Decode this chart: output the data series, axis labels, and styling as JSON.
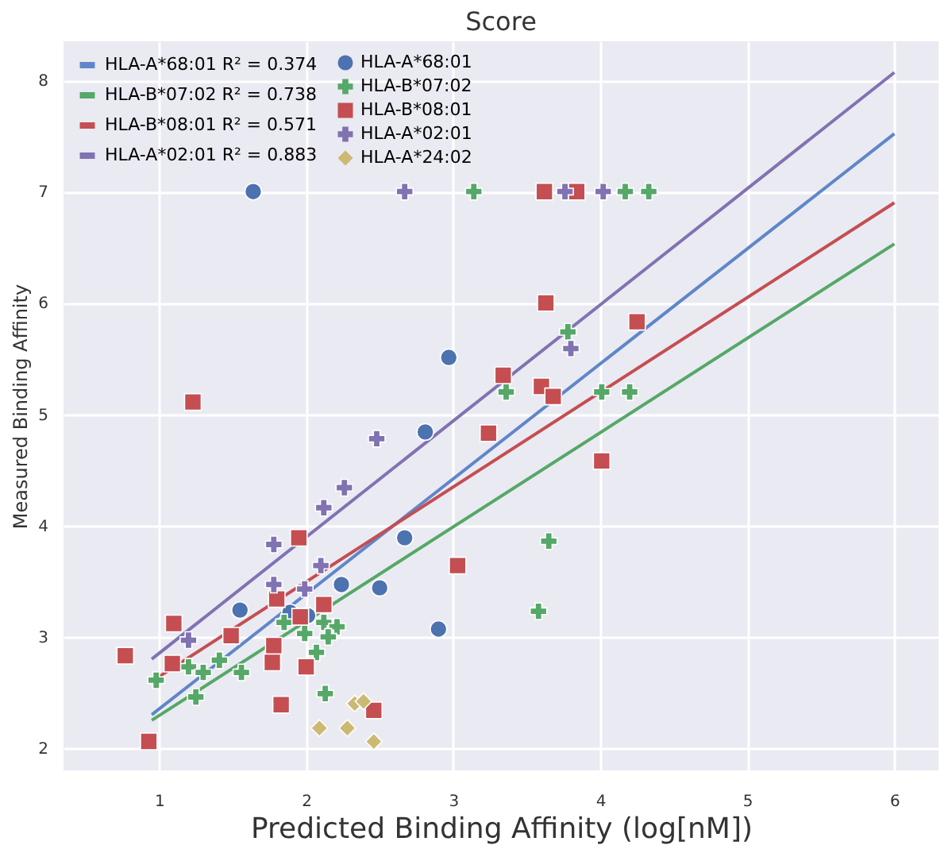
{
  "chart_data": {
    "type": "scatter",
    "title": "Score",
    "xlabel": "Predicted Binding Affinity (log[nM])",
    "ylabel": "Measured Binding Affinity",
    "xlim": [
      0.35,
      6.3
    ],
    "ylim": [
      1.8,
      8.35
    ],
    "xticks": [
      1,
      2,
      3,
      4,
      5,
      6
    ],
    "yticks": [
      2,
      3,
      4,
      5,
      6,
      7,
      8
    ],
    "grid": true,
    "legend": "top left",
    "series": [
      {
        "name": "HLA-A*68:01 R² = 0.374",
        "type": "line",
        "color": "#5f86c9",
        "x": [
          0.95,
          6
        ],
        "values": [
          2.3,
          7.52
        ]
      },
      {
        "name": "HLA-B*07:02 R² = 0.738",
        "type": "line",
        "color": "#55a868",
        "x": [
          0.95,
          6
        ],
        "values": [
          2.25,
          6.53
        ]
      },
      {
        "name": "HLA-B*08:01 R² = 0.571",
        "type": "line",
        "color": "#c44e52",
        "x": [
          0.95,
          6
        ],
        "values": [
          2.6,
          6.9
        ]
      },
      {
        "name": "HLA-A*02:01 R² = 0.883",
        "type": "line",
        "color": "#8172b2",
        "x": [
          0.95,
          6
        ],
        "values": [
          2.8,
          8.07
        ]
      },
      {
        "name": "HLA-A*68:01",
        "marker": "circle",
        "color": "#4c72b0",
        "x": [
          1.64,
          2.97,
          2.81,
          2.67,
          2.24,
          2.5,
          2.9,
          1.55,
          1.89,
          2.01
        ],
        "values": [
          7.0,
          5.51,
          4.84,
          3.89,
          3.47,
          3.44,
          3.07,
          3.24,
          3.22,
          3.19
        ]
      },
      {
        "name": "HLA-B*07:02",
        "marker": "cross",
        "color": "#55a868",
        "x": [
          0.98,
          1.25,
          1.2,
          1.3,
          1.41,
          1.56,
          1.85,
          1.99,
          2.12,
          2.21,
          2.15,
          2.07,
          2.13,
          3.14,
          4.17,
          4.33,
          3.78,
          3.36,
          4.01,
          4.2,
          3.65,
          3.58
        ],
        "values": [
          2.61,
          2.46,
          2.73,
          2.68,
          2.79,
          2.68,
          3.13,
          3.03,
          3.13,
          3.09,
          3.0,
          2.86,
          2.49,
          7.0,
          7.0,
          7.0,
          5.74,
          5.2,
          5.2,
          5.2,
          3.86,
          3.23
        ]
      },
      {
        "name": "HLA-B*08:01",
        "marker": "square",
        "color": "#c44e52",
        "x": [
          3.62,
          3.84,
          3.63,
          4.25,
          3.34,
          3.6,
          3.68,
          3.24,
          4.01,
          1.23,
          1.95,
          1.1,
          1.49,
          0.77,
          1.09,
          2.12,
          1.96,
          1.8,
          1.78,
          1.77,
          2.0,
          1.83,
          2.46,
          0.93,
          3.03
        ],
        "values": [
          7.0,
          7.0,
          6.0,
          5.83,
          5.35,
          5.25,
          5.16,
          4.83,
          4.58,
          5.11,
          3.89,
          3.12,
          3.01,
          2.83,
          2.76,
          3.29,
          3.18,
          3.34,
          2.92,
          2.77,
          2.73,
          2.39,
          2.34,
          2.06,
          3.64
        ]
      },
      {
        "name": "HLA-A*02:01",
        "marker": "cross",
        "color": "#8172b2",
        "x": [
          2.67,
          3.76,
          4.02,
          3.8,
          2.48,
          2.26,
          2.12,
          1.78,
          2.1,
          1.78,
          1.99,
          1.2
        ],
        "values": [
          7.0,
          7.0,
          7.0,
          5.59,
          4.78,
          4.34,
          4.16,
          3.83,
          3.64,
          3.47,
          3.43,
          2.97
        ]
      },
      {
        "name": "HLA-A*24:02",
        "marker": "diamond",
        "color": "#ccb974",
        "x": [
          2.33,
          2.39,
          2.09,
          2.28,
          2.46
        ],
        "values": [
          2.4,
          2.42,
          2.18,
          2.18,
          2.06
        ]
      }
    ]
  }
}
